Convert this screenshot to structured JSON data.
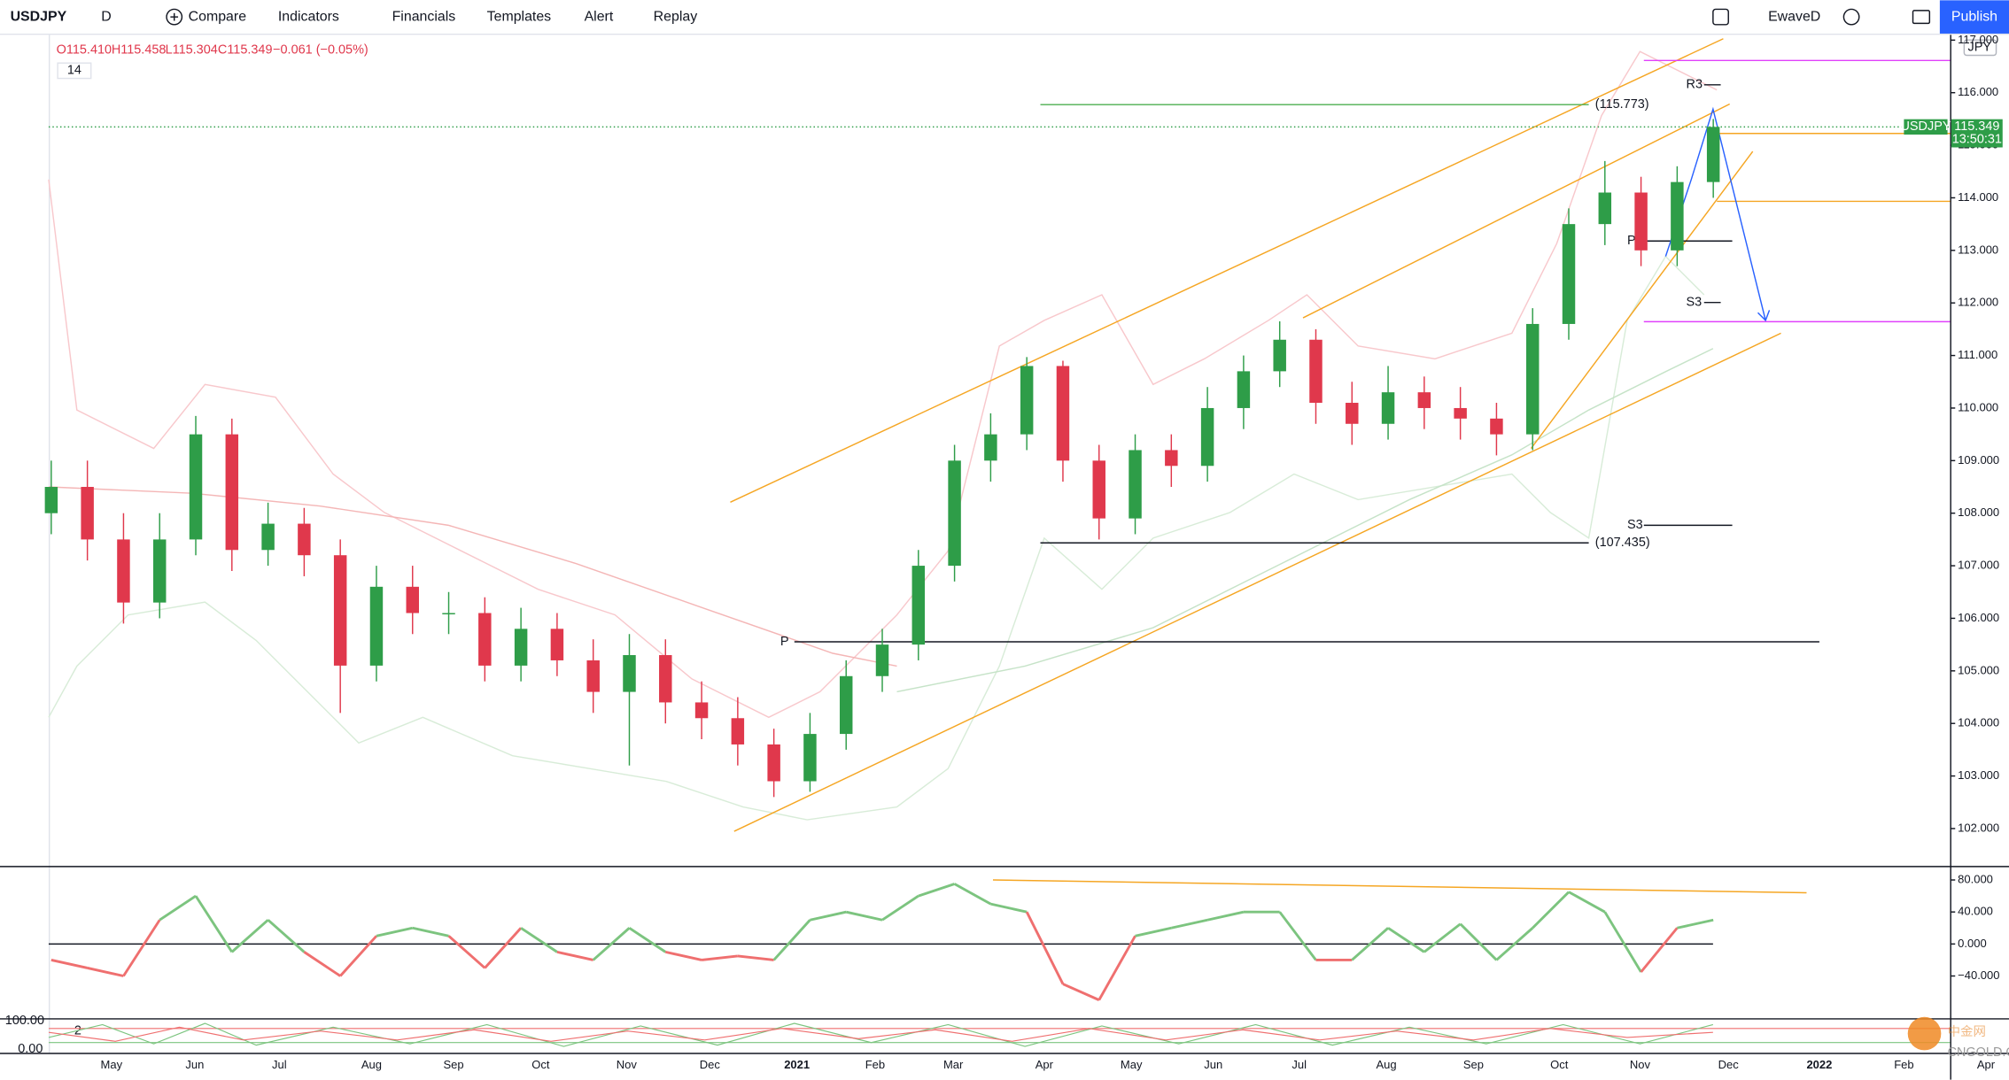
{
  "toolbar": {
    "symbol": "USDJPY",
    "interval": "D",
    "compare": "Compare",
    "indicators": "Indicators",
    "financials": "Financials",
    "templates": "Templates",
    "alert": "Alert",
    "replay": "Replay",
    "layout": "EwaveD",
    "publish": "Publish"
  },
  "legend": {
    "open": "O115.410",
    "high": "H115.458",
    "low": "L115.304",
    "close": "C115.349",
    "change": "−0.061 (−0.05%)",
    "input": "14"
  },
  "price_scale": {
    "currency": "JPY",
    "symbol_tag": "USDJPY",
    "last_price": "115.349",
    "countdown": "13:50:31"
  },
  "annotations": {
    "levels": [
      {
        "value": 115.773,
        "label": "(115.773)"
      },
      {
        "value": 107.435,
        "label": "(107.435)"
      }
    ],
    "pivots": [
      "R3",
      "P",
      "S3",
      "S3",
      "P"
    ]
  },
  "time_axis": {
    "labels": [
      "May",
      "Jun",
      "Jul",
      "Aug",
      "Sep",
      "Oct",
      "Nov",
      "Dec",
      "2021",
      "Feb",
      "Mar",
      "Apr",
      "May",
      "Jun",
      "Jul",
      "Aug",
      "Sep",
      "Oct",
      "Nov",
      "Dec",
      "2022",
      "Feb",
      "Apr"
    ]
  },
  "lower_pane": {
    "ticks": [
      "100.00",
      "0.00"
    ],
    "input": "2"
  },
  "watermark": {
    "title": "中金网",
    "subtitle": "CNGOLD.COM.CN"
  },
  "chart_data": [
    {
      "type": "candlestick",
      "up_color": "#2e9d48",
      "down_color": "#e0384c",
      "ylim": [
        101.29,
        117.1
      ],
      "yticks": [
        {
          "value": 102,
          "label": "102.000"
        },
        {
          "value": 103,
          "label": "103.000"
        },
        {
          "value": 104,
          "label": "104.000"
        },
        {
          "value": 105,
          "label": "105.000"
        },
        {
          "value": 106,
          "label": "106.000"
        },
        {
          "value": 107,
          "label": "107.000"
        },
        {
          "value": 108,
          "label": "108.000"
        },
        {
          "value": 109,
          "label": "109.000"
        },
        {
          "value": 110,
          "label": "110.000"
        },
        {
          "value": 111,
          "label": "111.000"
        },
        {
          "value": 112,
          "label": "112.000"
        },
        {
          "value": 113,
          "label": "113.000"
        },
        {
          "value": 114,
          "label": "114.000"
        },
        {
          "value": 115,
          "label": "115.000"
        },
        {
          "value": 116,
          "label": "116.000"
        },
        {
          "value": 117,
          "label": "117.000"
        }
      ],
      "open": [
        108.0,
        108.5,
        107.5,
        106.3,
        107.5,
        109.5,
        107.3,
        107.8,
        107.2,
        105.1,
        106.6,
        106.1,
        106.1,
        105.1,
        105.8,
        105.2,
        104.6,
        105.3,
        104.4,
        104.1,
        103.6,
        102.9,
        103.8,
        104.9,
        105.5,
        107.0,
        109.0,
        109.5,
        110.8,
        109.0,
        107.9,
        109.2,
        108.9,
        110.0,
        110.7,
        111.3,
        110.1,
        109.7,
        110.3,
        110.0,
        109.8,
        109.5,
        111.6,
        113.5,
        114.1,
        113.0,
        114.3
      ],
      "high": [
        109.0,
        109.0,
        108.0,
        108.0,
        109.85,
        109.8,
        108.2,
        108.1,
        107.5,
        107.0,
        107.0,
        106.5,
        106.4,
        106.2,
        106.1,
        105.6,
        105.7,
        105.6,
        104.8,
        104.5,
        103.9,
        104.2,
        105.2,
        105.8,
        107.3,
        109.3,
        109.9,
        110.97,
        110.9,
        109.3,
        109.5,
        109.5,
        110.4,
        111.0,
        111.65,
        111.5,
        110.5,
        110.8,
        110.6,
        110.4,
        110.1,
        111.9,
        113.8,
        114.7,
        114.4,
        114.6,
        115.5
      ],
      "low": [
        107.6,
        107.1,
        105.9,
        106.0,
        107.2,
        106.9,
        107.0,
        106.8,
        104.2,
        104.8,
        105.7,
        105.7,
        104.8,
        104.8,
        104.9,
        104.2,
        103.2,
        104.0,
        103.7,
        103.2,
        102.6,
        102.7,
        103.5,
        104.6,
        105.2,
        106.7,
        108.6,
        109.2,
        108.6,
        107.5,
        107.6,
        108.5,
        108.6,
        109.6,
        110.4,
        109.7,
        109.3,
        109.4,
        109.6,
        109.4,
        109.1,
        109.2,
        111.3,
        113.1,
        112.7,
        112.7,
        114.0
      ],
      "close": [
        108.5,
        107.5,
        106.3,
        107.5,
        109.5,
        107.3,
        107.8,
        107.2,
        105.1,
        106.6,
        106.1,
        106.1,
        105.1,
        105.8,
        105.2,
        104.6,
        105.3,
        104.4,
        104.1,
        103.6,
        102.9,
        103.8,
        104.9,
        105.5,
        107.0,
        109.0,
        109.5,
        110.8,
        109.0,
        107.9,
        109.2,
        108.9,
        110.0,
        110.7,
        111.3,
        110.1,
        109.7,
        110.3,
        110.0,
        109.8,
        109.5,
        111.6,
        113.5,
        114.1,
        113.0,
        114.3,
        115.349
      ]
    },
    {
      "type": "oscillator",
      "positive_color": "#7cc47f",
      "negative_color": "#ef6f6f",
      "ylim": [
        -92.8,
        96
      ],
      "yticks": [
        {
          "value": 80,
          "label": "80.000"
        },
        {
          "value": 40,
          "label": "40.000"
        },
        {
          "value": 0,
          "label": "0.000"
        },
        {
          "value": -40,
          "label": "−40.000"
        }
      ],
      "values": [
        -20,
        -30,
        -40,
        30,
        60,
        -10,
        30,
        -10,
        -40,
        10,
        20,
        10,
        -30,
        20,
        -10,
        -20,
        20,
        -10,
        -20,
        -15,
        -20,
        30,
        40,
        30,
        60,
        75,
        50,
        40,
        -50,
        -70,
        10,
        20,
        30,
        40,
        40,
        -20,
        -20,
        20,
        -10,
        25,
        -20,
        20,
        65,
        40,
        -35,
        20,
        30
      ]
    }
  ]
}
